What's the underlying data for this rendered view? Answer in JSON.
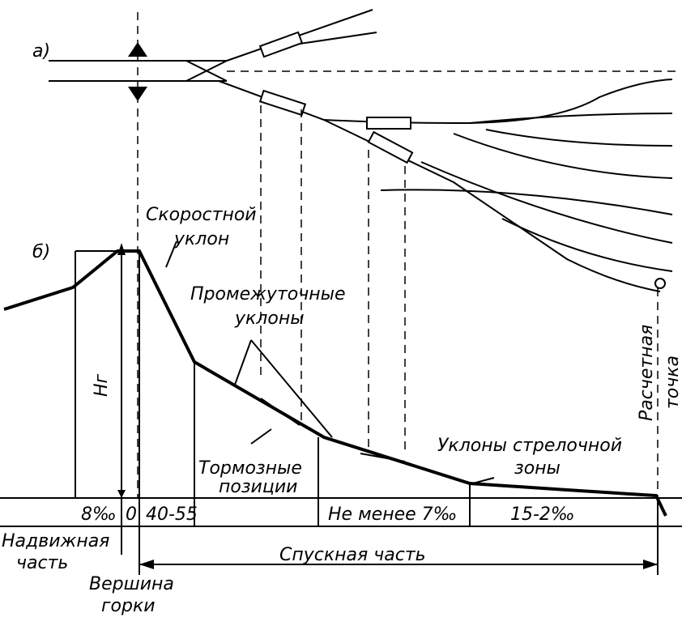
{
  "labels": {
    "a": "а)",
    "b": "б)"
  },
  "annotations": {
    "speed_slope": [
      "Скоростной",
      "уклон"
    ],
    "intermediate": [
      "Промежуточные",
      "уклоны"
    ],
    "brakes": [
      "Тормозные",
      "позиции"
    ],
    "switch_zone": [
      "Уклоны стрелочной",
      "зоны"
    ],
    "design_point": [
      "Расчетная",
      "точка"
    ],
    "height": "Hг"
  },
  "table": {
    "cells": [
      "8‰",
      "0",
      "40-55",
      "Не менее 7‰",
      "15-2‰"
    ]
  },
  "parts": {
    "push": [
      "Надвижная",
      "часть"
    ],
    "descent": "Спускная часть",
    "top": [
      "Вершина",
      "горки"
    ]
  }
}
